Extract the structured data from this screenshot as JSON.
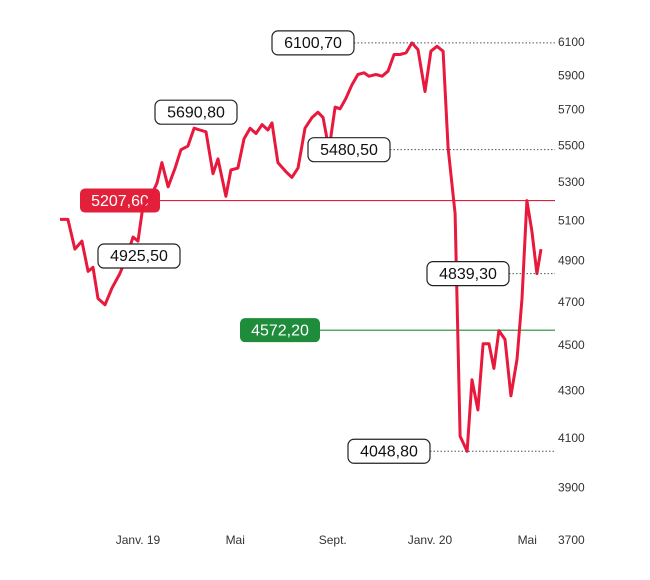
{
  "chart_data": {
    "type": "line",
    "log_scale": true,
    "color": "#e8193c",
    "x": [
      2018.733,
      2018.76,
      2018.784,
      2018.808,
      2018.829,
      2018.846,
      2018.863,
      2018.887,
      2018.911,
      2018.938,
      2018.962,
      2018.983,
      2019.0,
      2019.017,
      2019.041,
      2019.065,
      2019.082,
      2019.103,
      2019.127,
      2019.147,
      2019.171,
      2019.192,
      2019.212,
      2019.233,
      2019.257,
      2019.274,
      2019.301,
      2019.318,
      2019.342,
      2019.363,
      2019.384,
      2019.404,
      2019.425,
      2019.445,
      2019.459,
      2019.479,
      2019.507,
      2019.527,
      2019.548,
      2019.572,
      2019.596,
      2019.616,
      2019.634,
      2019.654,
      2019.675,
      2019.692,
      2019.712,
      2019.733,
      2019.753,
      2019.774,
      2019.791,
      2019.815,
      2019.836,
      2019.856,
      2019.877,
      2019.897,
      2019.918,
      2019.938,
      2019.959,
      2019.983,
      2020.003,
      2020.024,
      2020.045,
      2020.062,
      2020.086,
      2020.103,
      2020.127,
      2020.144,
      2020.164,
      2020.182,
      2020.202,
      2020.219,
      2020.236,
      2020.257,
      2020.277,
      2020.298,
      2020.315,
      2020.332,
      2020.349,
      2020.366,
      2020.38
    ],
    "values": [
      5110,
      5110,
      4960,
      5000,
      4850,
      4870,
      4720,
      4690,
      4770,
      4840,
      4925.5,
      5020,
      5000,
      5180,
      5220,
      5300,
      5410,
      5280,
      5380,
      5480,
      5500,
      5600,
      5590,
      5580,
      5350,
      5430,
      5230,
      5370,
      5380,
      5540,
      5600,
      5570,
      5620,
      5590,
      5630,
      5410,
      5360,
      5330,
      5380,
      5600,
      5660,
      5690.8,
      5660,
      5480.5,
      5720,
      5710,
      5770,
      5850,
      5910,
      5920,
      5900,
      5910,
      5900,
      5930,
      6030,
      6030,
      6040,
      6100.7,
      6060,
      5810,
      6050,
      6080,
      6050,
      5490,
      5140,
      4110,
      4048.8,
      4350,
      4220,
      4510,
      4510,
      4400,
      4570,
      4530,
      4280,
      4440,
      4720,
      5207.6,
      5050,
      4839.3,
      4960
    ],
    "xlim": [
      2018.7,
      2020.4
    ],
    "xticks": [
      {
        "value": 2019.0,
        "label": "Janv. 19"
      },
      {
        "value": 2019.333,
        "label": "Mai"
      },
      {
        "value": 2019.667,
        "label": "Sept."
      },
      {
        "value": 2020.0,
        "label": "Janv. 20"
      },
      {
        "value": 2020.333,
        "label": "Mai"
      }
    ],
    "ylim": [
      3700,
      6100
    ],
    "yticks": [
      3700,
      3900,
      4100,
      4300,
      4500,
      4700,
      4900,
      5100,
      5300,
      5500,
      5700,
      5900,
      6100
    ],
    "annotations": [
      {
        "value": 6100.7,
        "label": "6100,70",
        "leader": true
      },
      {
        "value": 5690.8,
        "label": "5690,80",
        "leader": false
      },
      {
        "value": 5480.5,
        "label": "5480,50",
        "leader": true
      },
      {
        "value": 4925.5,
        "label": "4925,50",
        "leader": false
      },
      {
        "value": 4839.3,
        "label": "4839,30",
        "leader": true
      },
      {
        "value": 4048.8,
        "label": "4048,80",
        "leader": true
      }
    ],
    "reference_lines": [
      {
        "value": 5207.6,
        "label": "5207,60",
        "color": "#e3203a"
      },
      {
        "value": 4572.2,
        "label": "4572,20",
        "color": "#1e8c3a"
      }
    ]
  }
}
